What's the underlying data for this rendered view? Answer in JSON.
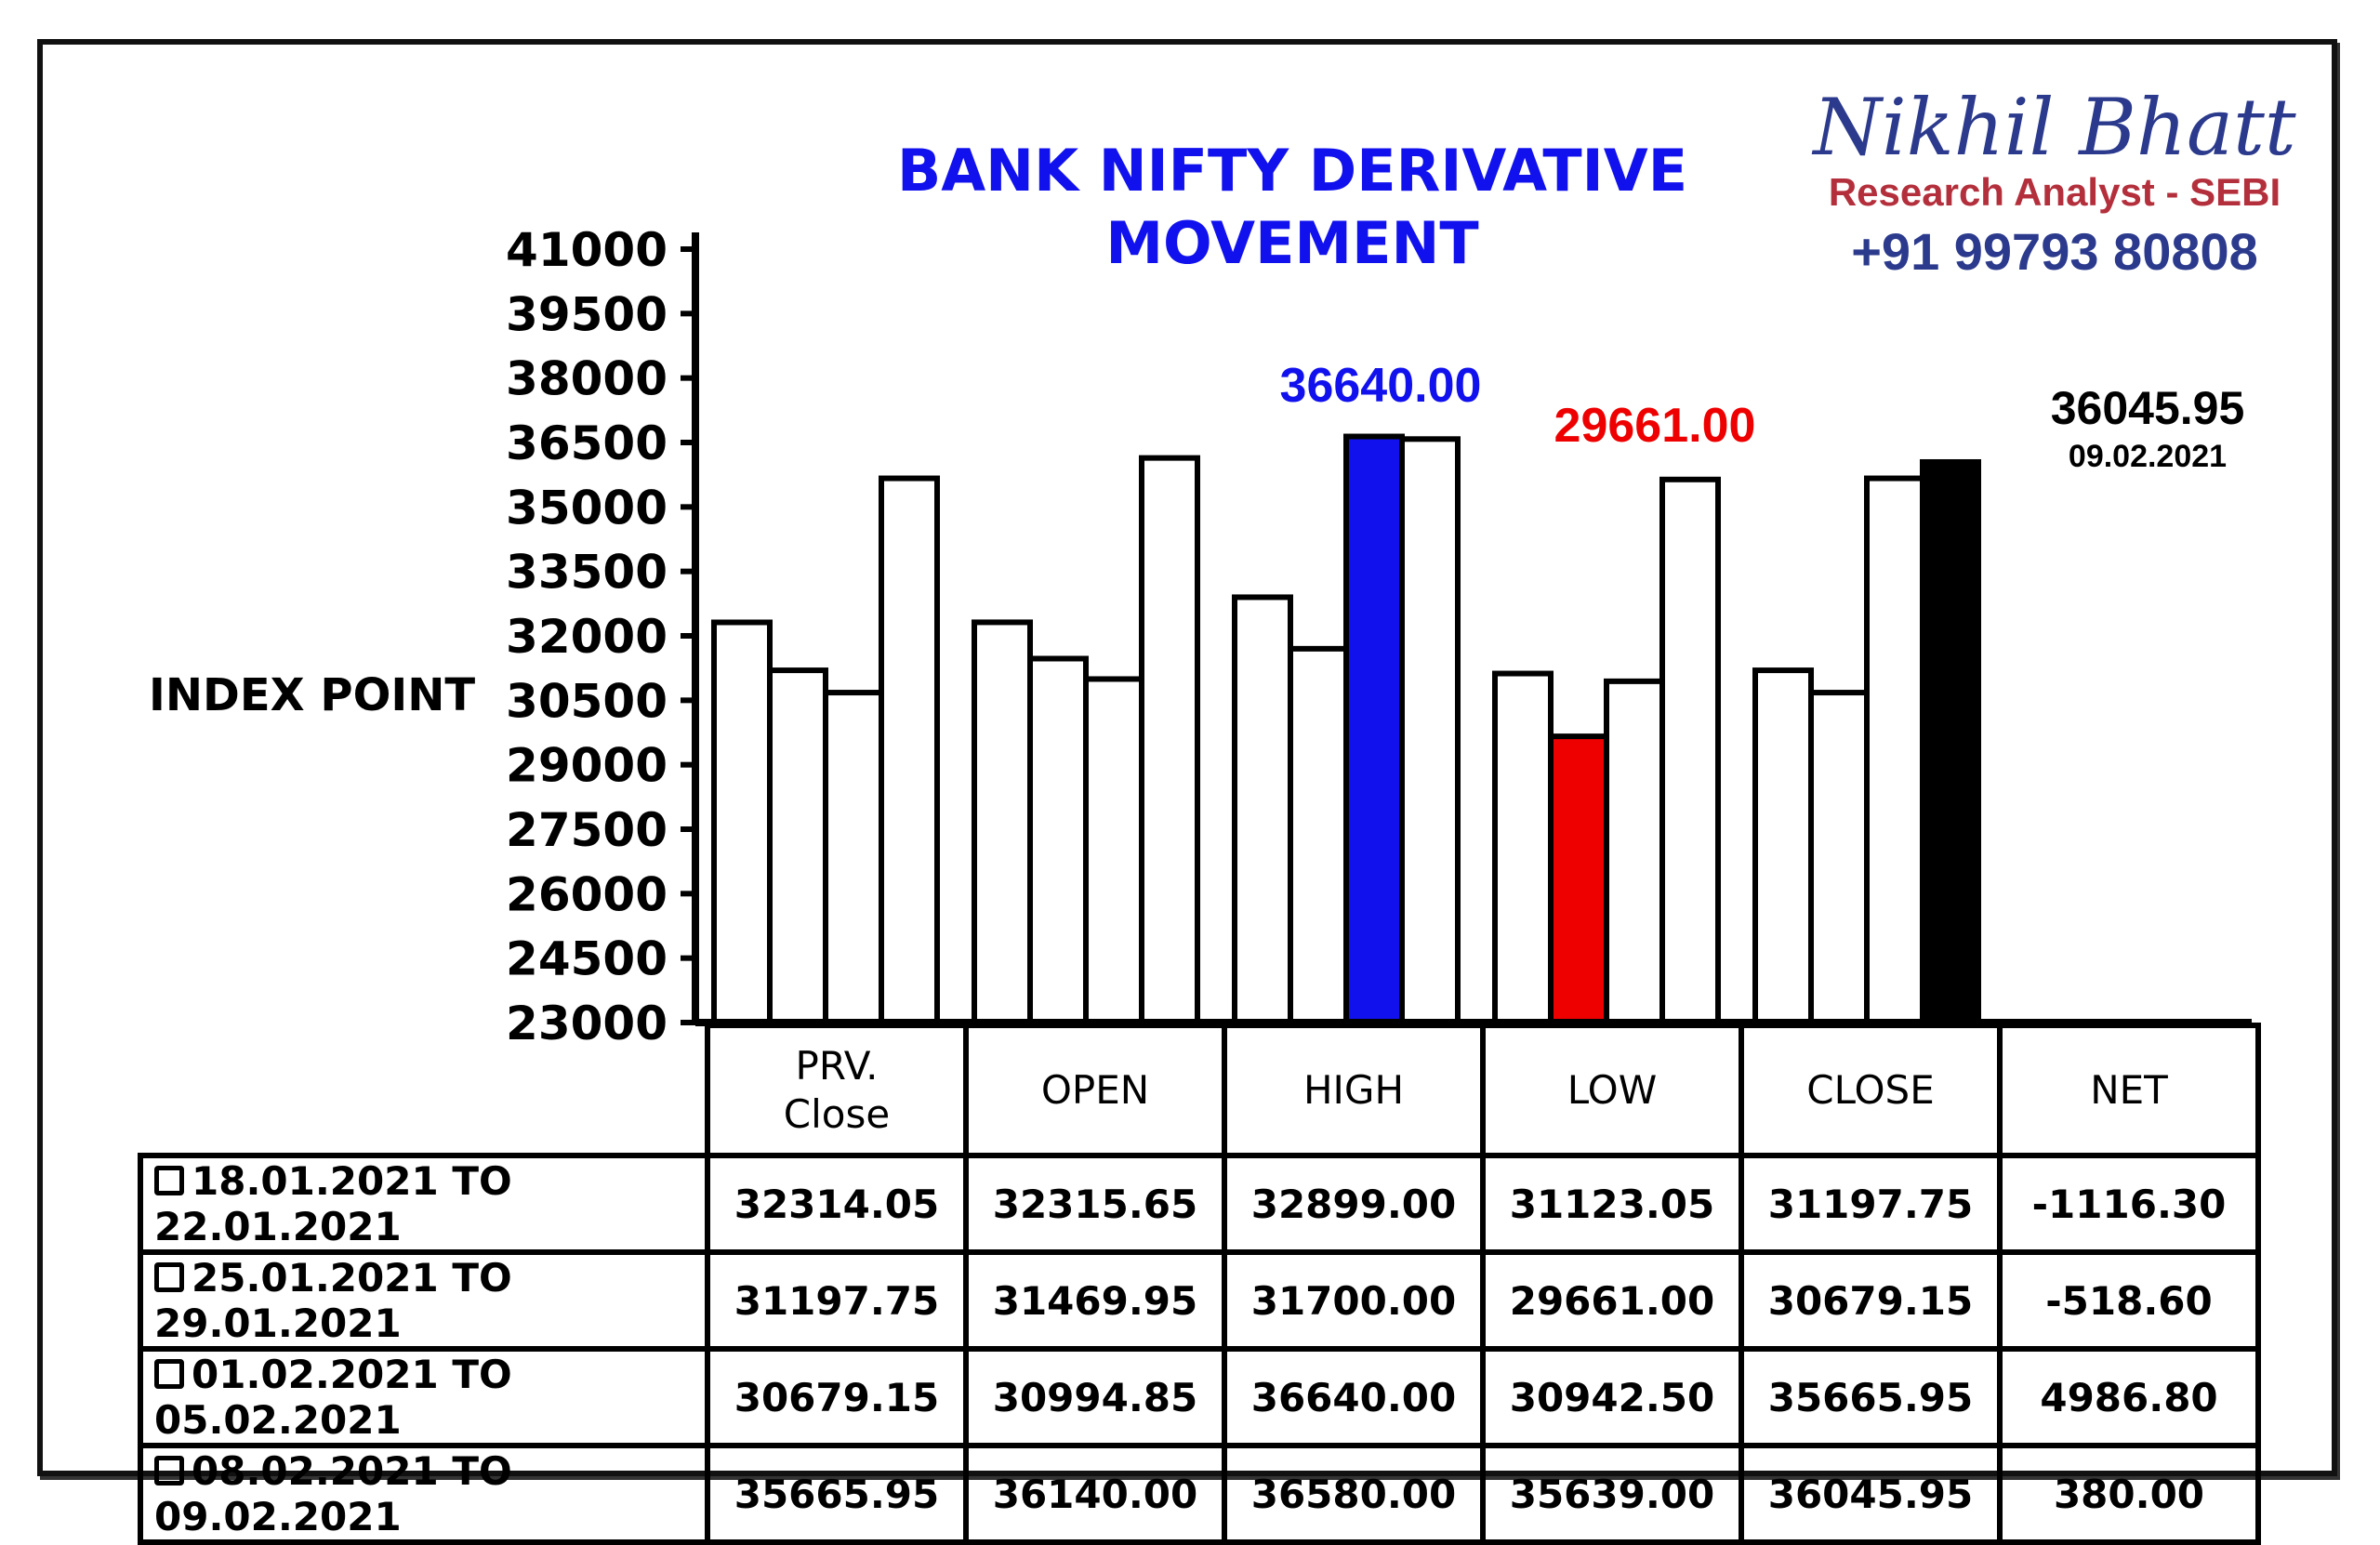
{
  "chart_data": {
    "type": "bar",
    "title": "BANK NIFTY DERIVATIVE MOVEMENT",
    "ylabel": "INDEX POINT",
    "ylim": [
      23000,
      41000
    ],
    "yticks": [
      "41000",
      "39500",
      "38000",
      "36500",
      "35000",
      "33500",
      "32000",
      "30500",
      "29000",
      "27500",
      "26000",
      "24500",
      "23000"
    ],
    "categories": [
      "PRV. Close",
      "OPEN",
      "HIGH",
      "LOW",
      "CLOSE"
    ],
    "series": [
      {
        "name": "18.01.2021 TO 22.01.2021",
        "values": [
          32314.05,
          32315.65,
          32899.0,
          31123.05,
          31197.75
        ]
      },
      {
        "name": "25.01.2021 TO 29.01.2021",
        "values": [
          31197.75,
          31469.95,
          31700.0,
          29661.0,
          30679.15
        ]
      },
      {
        "name": "01.02.2021 TO 05.02.2021",
        "values": [
          30679.15,
          30994.85,
          36640.0,
          30942.5,
          35665.95
        ]
      },
      {
        "name": "08.02.2021 TO 09.02.2021",
        "values": [
          35665.95,
          36140.0,
          36580.0,
          35639.0,
          36045.95
        ]
      }
    ],
    "highlights": [
      {
        "category": 2,
        "series": 2,
        "color": "#1111ee"
      },
      {
        "category": 3,
        "series": 1,
        "color": "#ee0000"
      },
      {
        "category": 4,
        "series": 3,
        "color": "#000000"
      }
    ],
    "annotations": {
      "high": "36640.00",
      "low": "29661.00",
      "close": "36045.95",
      "close_date": "09.02.2021"
    },
    "legend": "left",
    "grid": false
  },
  "brand": {
    "name": "Nikhil Bhatt",
    "role": "Research Analyst - SEBI",
    "phone": "+91 99793 80808"
  },
  "table": {
    "headers": [
      "PRV.\nClose",
      "OPEN",
      "HIGH",
      "LOW",
      "CLOSE",
      "NET"
    ],
    "rows": [
      {
        "label": "18.01.2021 TO 22.01.2021",
        "values": [
          "32314.05",
          "32315.65",
          "32899.00",
          "31123.05",
          "31197.75",
          "-1116.30"
        ]
      },
      {
        "label": "25.01.2021 TO 29.01.2021",
        "values": [
          "31197.75",
          "31469.95",
          "31700.00",
          "29661.00",
          "30679.15",
          "-518.60"
        ]
      },
      {
        "label": "01.02.2021 TO 05.02.2021",
        "values": [
          "30679.15",
          "30994.85",
          "36640.00",
          "30942.50",
          "35665.95",
          "4986.80"
        ]
      },
      {
        "label": "08.02.2021 TO 09.02.2021",
        "values": [
          "35665.95",
          "36140.00",
          "36580.00",
          "35639.00",
          "36045.95",
          "380.00"
        ]
      }
    ]
  }
}
